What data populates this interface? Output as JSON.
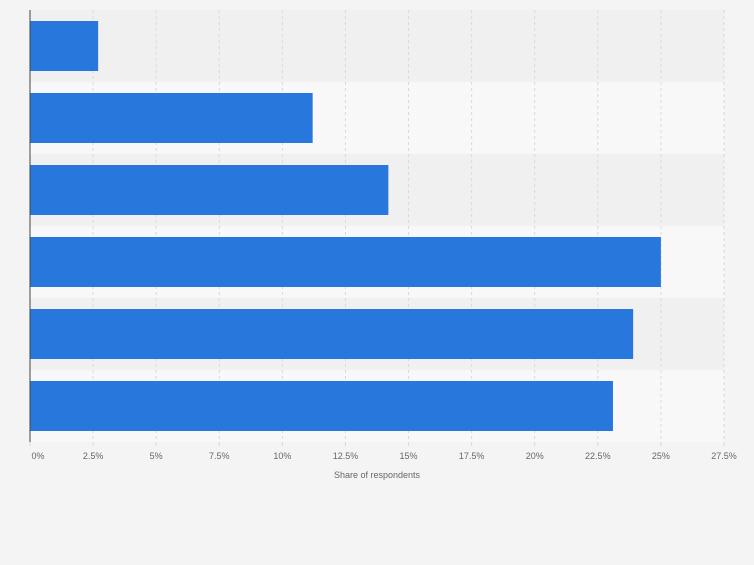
{
  "chart_data": {
    "type": "bar",
    "orientation": "horizontal",
    "categories": [
      "",
      "",
      "",
      "",
      "",
      ""
    ],
    "values": [
      2.7,
      11.2,
      14.2,
      25.0,
      23.9,
      23.1
    ],
    "unit": "%",
    "xlabel": "Share of respondents",
    "ylabel": "",
    "xlim": [
      0,
      27.5
    ],
    "xticks": [
      0,
      2.5,
      5,
      7.5,
      10,
      12.5,
      15,
      17.5,
      20,
      22.5,
      25,
      27.5
    ],
    "xtick_labels": [
      "0%",
      "2.5%",
      "5%",
      "7.5%",
      "10%",
      "12.5%",
      "15%",
      "17.5%",
      "20%",
      "22.5%",
      "25%",
      "27.5%"
    ],
    "grid": "vertical, dashed",
    "legend": "none"
  },
  "colors": {
    "bar": "#2877dd",
    "page_background": "#f4f4f4",
    "band_dark": "#f0f0f0",
    "band_light": "#f8f8f8",
    "grid": "#d9d9d9",
    "axis": "#444444",
    "tick_text": "#666666"
  }
}
